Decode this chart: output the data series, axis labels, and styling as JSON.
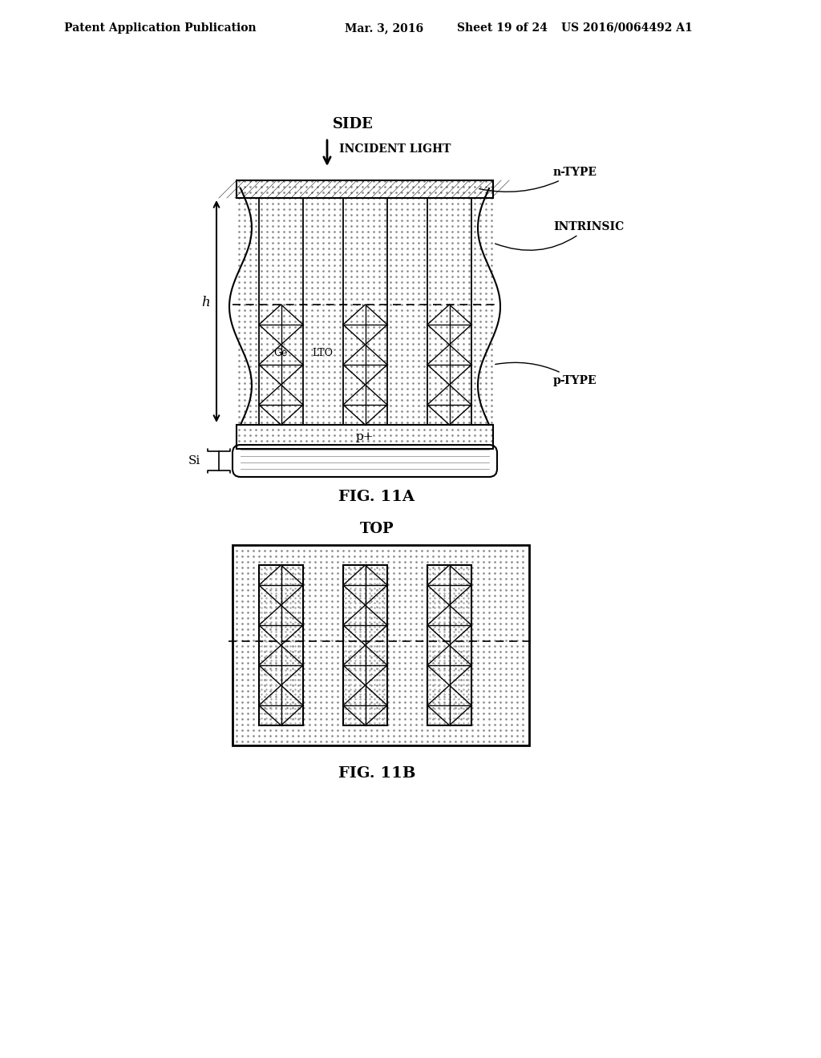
{
  "bg_color": "#ffffff",
  "header_text": "Patent Application Publication",
  "header_date": "Mar. 3, 2016",
  "header_sheet": "Sheet 19 of 24",
  "header_patent": "US 2016/0064492 A1",
  "fig11a_label": "FIG. 11A",
  "fig11b_label": "FIG. 11B",
  "side_label": "SIDE",
  "top_label": "TOP",
  "incident_light": "INCIDENT LIGHT",
  "n_type": "n-TYPE",
  "intrinsic": "INTRINSIC",
  "p_type": "p-TYPE",
  "p_plus": "p+",
  "si_label": "Si",
  "h_label": "h",
  "ge_label": "Ge",
  "lto_label": "LTO",
  "dot_color": "#aaaaaa",
  "line_color": "#000000"
}
